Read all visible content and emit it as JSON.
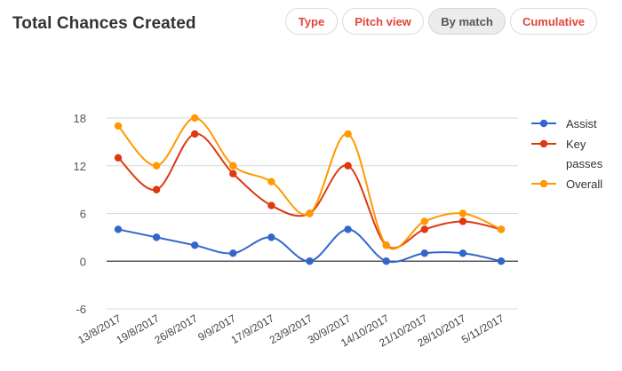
{
  "header": {
    "title": "Total Chances Created"
  },
  "toolbar": {
    "buttons": [
      {
        "label": "Type",
        "active": false
      },
      {
        "label": "Pitch view",
        "active": false
      },
      {
        "label": "By match",
        "active": true
      },
      {
        "label": "Cumulative",
        "active": false
      }
    ]
  },
  "colors": {
    "accent_text": "#e0453a",
    "assist": "#3366cc",
    "key_passes": "#dc3912",
    "overall": "#ff9900"
  },
  "chart_data": {
    "type": "line",
    "title": "",
    "xlabel": "",
    "ylabel": "",
    "ylim": [
      -6,
      18
    ],
    "yticks": [
      "-6",
      "0",
      "6",
      "12",
      "18"
    ],
    "grid": true,
    "smooth": true,
    "legend_position": "right",
    "categories": [
      "13/8/2017",
      "19/8/2017",
      "26/8/2017",
      "9/9/2017",
      "17/9/2017",
      "23/9/2017",
      "30/9/2017",
      "14/10/2017",
      "21/10/2017",
      "28/10/2017",
      "5/11/2017"
    ],
    "series": [
      {
        "name": "Assist",
        "legend_lines": [
          "Assist"
        ],
        "color": "#3366cc",
        "values": [
          4,
          3,
          2,
          1,
          3,
          0,
          4,
          0,
          1,
          1,
          0
        ]
      },
      {
        "name": "Key passes",
        "legend_lines": [
          "Key",
          "passes"
        ],
        "color": "#dc3912",
        "values": [
          13,
          9,
          16,
          11,
          7,
          6,
          12,
          2,
          4,
          5,
          4
        ]
      },
      {
        "name": "Overall",
        "legend_lines": [
          "Overall"
        ],
        "color": "#ff9900",
        "values": [
          17,
          12,
          18,
          12,
          10,
          6,
          16,
          2,
          5,
          6,
          4
        ]
      }
    ]
  }
}
